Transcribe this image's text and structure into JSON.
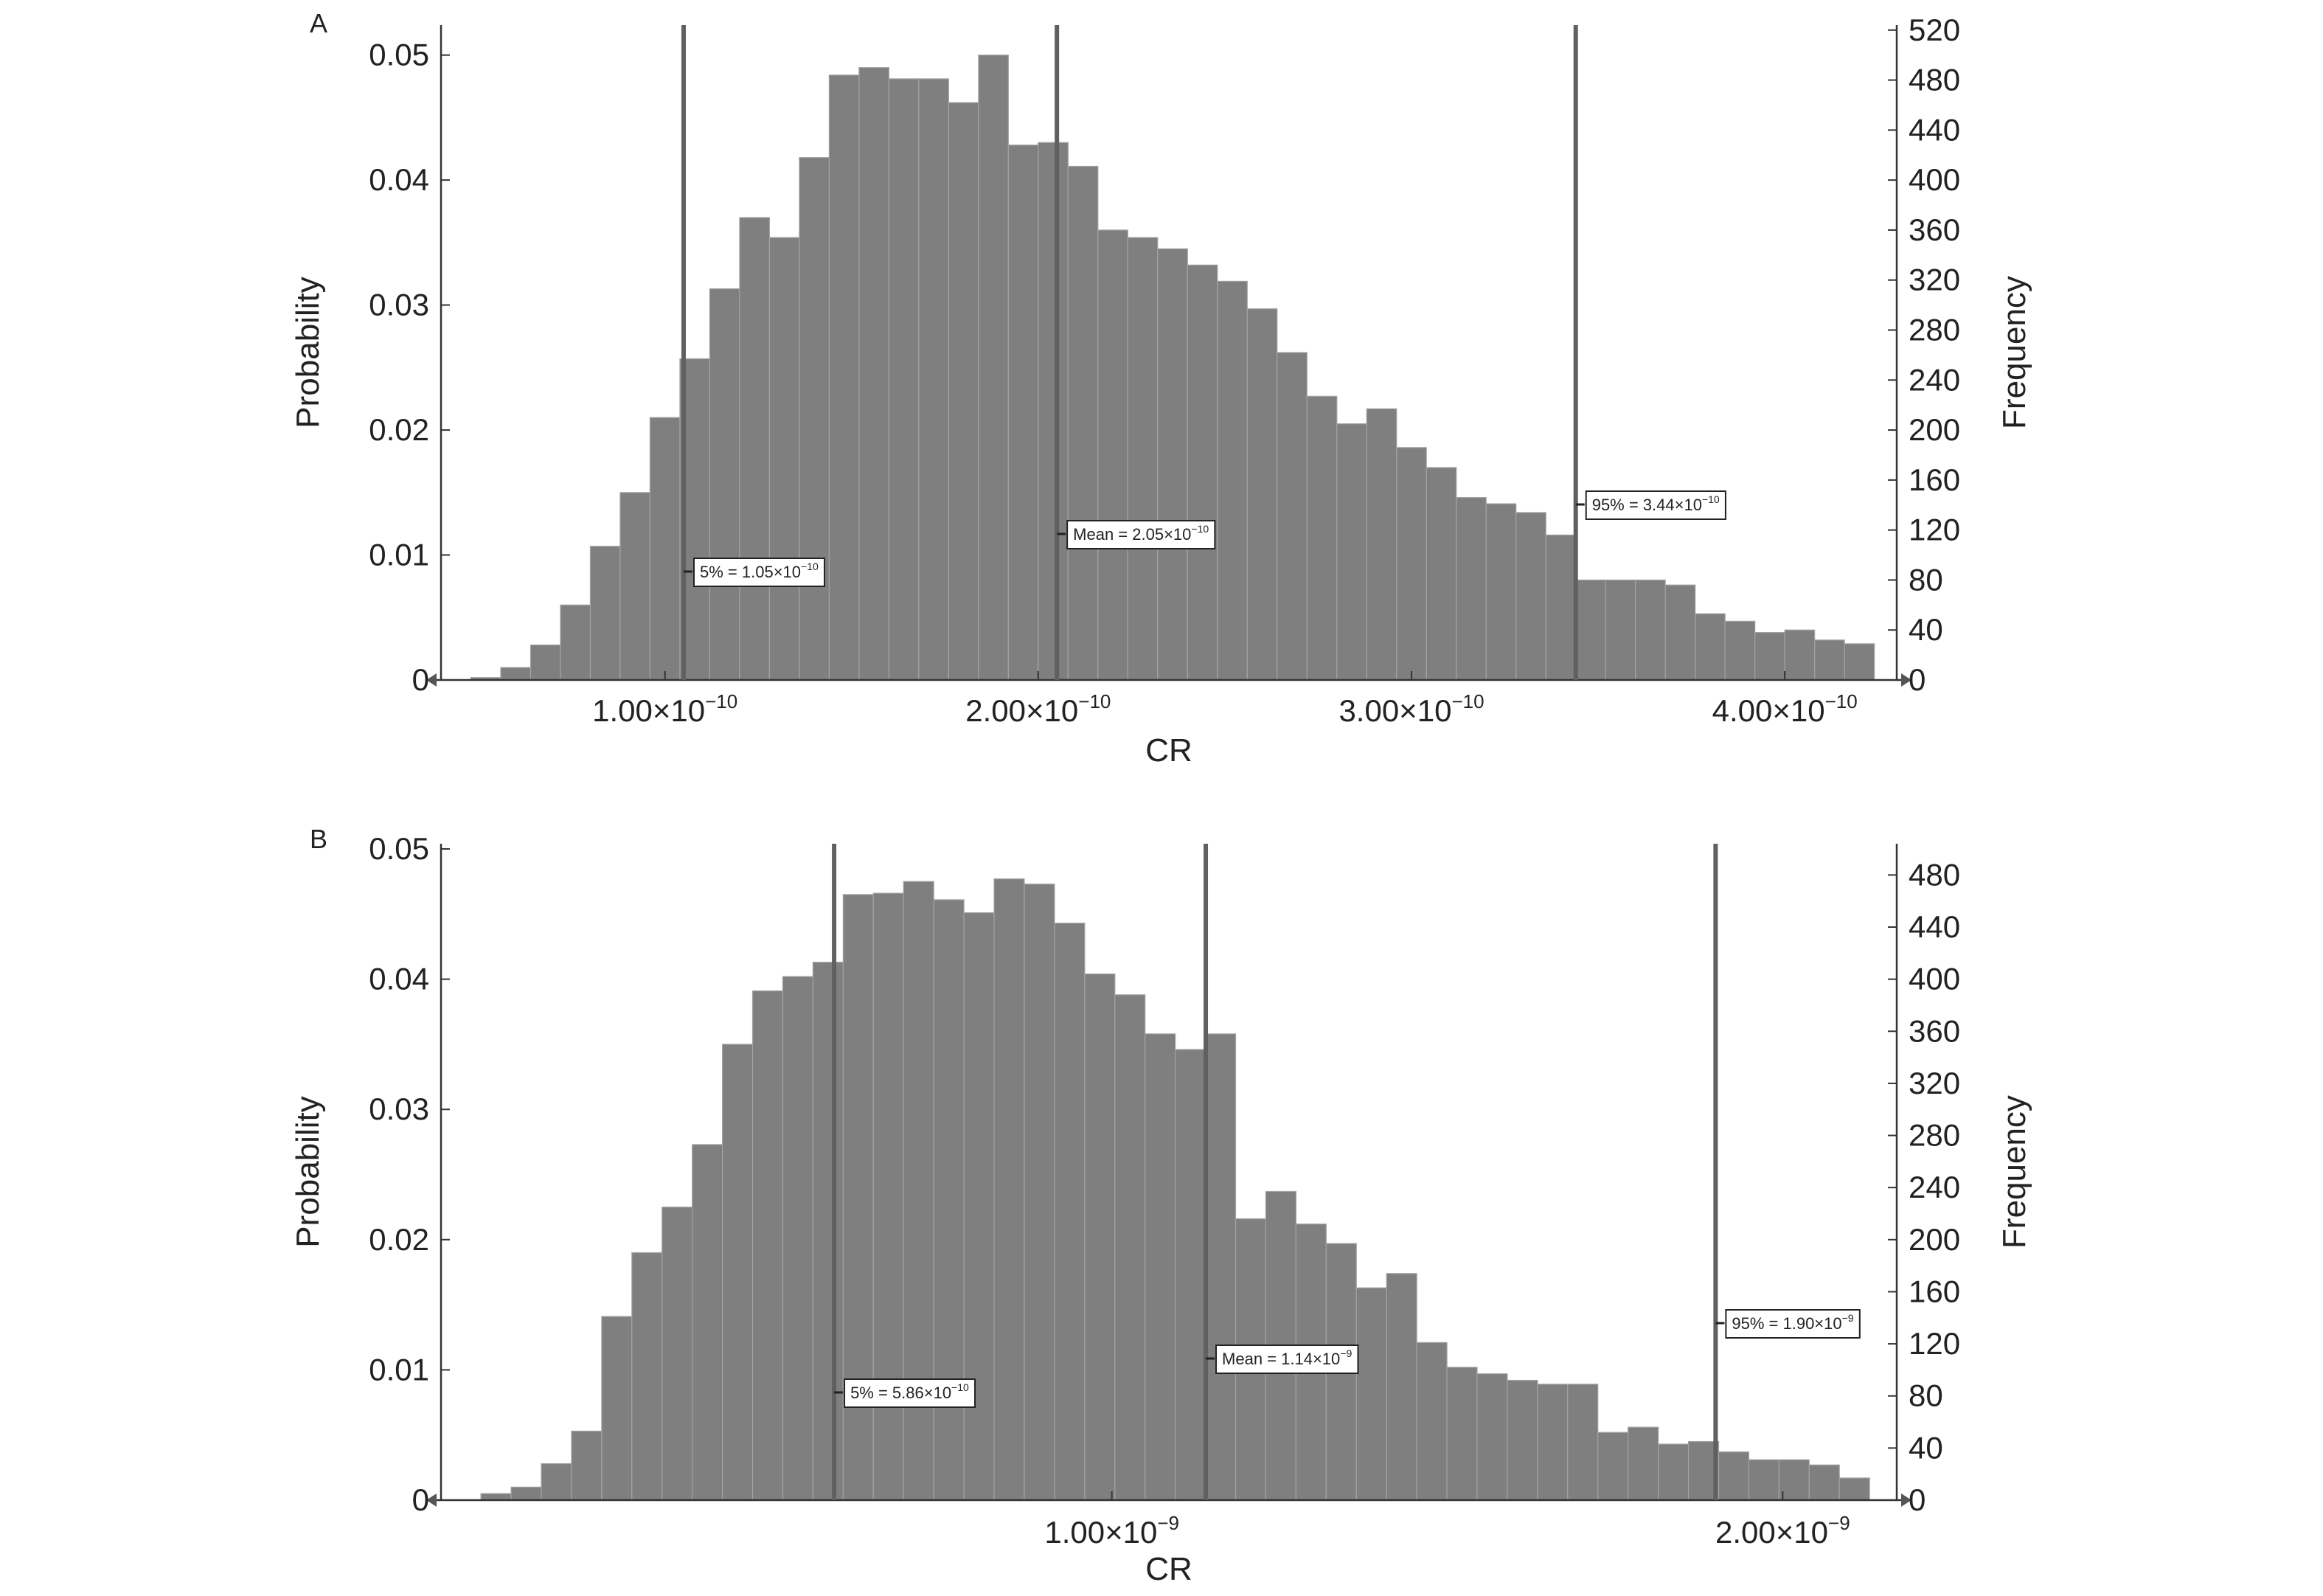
{
  "figure": {
    "background": "#ffffff",
    "bar_color": "#7f7f7f",
    "bar_edge": "#a3a3a3",
    "marker_color": "#606060"
  },
  "chart_data": [
    {
      "type": "bar",
      "panel_label": "A",
      "xlabel": "CR",
      "ylabel": "Probability",
      "ylabel2": "Frequency",
      "x_scale_note": "bin centers in units of 1e-10",
      "xlim": [
        0.4,
        4.3
      ],
      "ylim": [
        0,
        0.0524
      ],
      "y2lim": [
        0,
        524
      ],
      "yticks": [
        "0",
        "0.01",
        "0.02",
        "0.03",
        "0.04",
        "0.05"
      ],
      "y2ticks": [
        "0",
        "40",
        "80",
        "120",
        "160",
        "200",
        "240",
        "280",
        "320",
        "360",
        "400",
        "440",
        "480",
        "520"
      ],
      "xticks": [
        {
          "value": 1.0,
          "base": "1.00×10",
          "exp": "−10"
        },
        {
          "value": 2.0,
          "base": "2.00×10",
          "exp": "−10"
        },
        {
          "value": 3.0,
          "base": "3.00×10",
          "exp": "−10"
        },
        {
          "value": 4.0,
          "base": "4.00×10",
          "exp": "−10"
        }
      ],
      "bin_width": 0.08,
      "bins": [
        0.52,
        0.6,
        0.68,
        0.76,
        0.84,
        0.92,
        1.0,
        1.08,
        1.16,
        1.24,
        1.32,
        1.4,
        1.48,
        1.56,
        1.64,
        1.72,
        1.8,
        1.88,
        1.96,
        2.04,
        2.12,
        2.2,
        2.28,
        2.36,
        2.44,
        2.52,
        2.6,
        2.68,
        2.76,
        2.84,
        2.92,
        3.0,
        3.08,
        3.16,
        3.24,
        3.32,
        3.4,
        3.48,
        3.56,
        3.64,
        3.72,
        3.8,
        3.88,
        3.96,
        4.04,
        4.12,
        4.2
      ],
      "values": [
        0.0002,
        0.001,
        0.0028,
        0.006,
        0.0107,
        0.015,
        0.021,
        0.0257,
        0.0313,
        0.037,
        0.0354,
        0.0418,
        0.0484,
        0.049,
        0.0481,
        0.0481,
        0.0462,
        0.05,
        0.0428,
        0.043,
        0.0411,
        0.036,
        0.0354,
        0.0345,
        0.0332,
        0.0319,
        0.0297,
        0.0262,
        0.0227,
        0.0205,
        0.0217,
        0.0186,
        0.017,
        0.0146,
        0.0141,
        0.0134,
        0.0116,
        0.008,
        0.008,
        0.008,
        0.0076,
        0.0053,
        0.0047,
        0.0038,
        0.004,
        0.0032,
        0.0029
      ],
      "markers": [
        {
          "value": 1.05,
          "label": "5% = 1.05×10",
          "exp": "−10"
        },
        {
          "value": 2.05,
          "label": "Mean = 2.05×10",
          "exp": "−10"
        },
        {
          "value": 3.44,
          "label": "95% = 3.44×10",
          "exp": "−10"
        }
      ]
    },
    {
      "type": "bar",
      "panel_label": "B",
      "xlabel": "CR",
      "ylabel": "Probability",
      "ylabel2": "Frequency",
      "x_scale_note": "bin centers in units of 1e-9",
      "xlim": [
        0.0,
        2.17
      ],
      "ylim": [
        0,
        0.0504
      ],
      "y2lim": [
        0,
        504
      ],
      "yticks": [
        "0",
        "0.01",
        "0.02",
        "0.03",
        "0.04",
        "0.05"
      ],
      "y2ticks": [
        "0",
        "40",
        "80",
        "120",
        "160",
        "200",
        "240",
        "280",
        "320",
        "360",
        "400",
        "440",
        "480"
      ],
      "xticks": [
        {
          "value": 1.0,
          "base": "1.00×10",
          "exp": "−9"
        },
        {
          "value": 2.0,
          "base": "2.00×10",
          "exp": "−9"
        }
      ],
      "bin_width": 0.045,
      "bins": [
        0.082,
        0.127,
        0.172,
        0.217,
        0.262,
        0.307,
        0.352,
        0.397,
        0.442,
        0.487,
        0.532,
        0.577,
        0.622,
        0.667,
        0.712,
        0.757,
        0.802,
        0.847,
        0.892,
        0.937,
        0.982,
        1.027,
        1.072,
        1.117,
        1.162,
        1.207,
        1.252,
        1.297,
        1.342,
        1.387,
        1.432,
        1.477,
        1.522,
        1.567,
        1.612,
        1.657,
        1.702,
        1.747,
        1.792,
        1.837,
        1.882,
        1.927,
        1.972,
        2.017,
        2.062,
        2.107
      ],
      "values": [
        0.0005,
        0.001,
        0.0028,
        0.0053,
        0.0141,
        0.019,
        0.0225,
        0.0273,
        0.035,
        0.0391,
        0.0402,
        0.0413,
        0.0465,
        0.0466,
        0.0475,
        0.0461,
        0.0451,
        0.0477,
        0.0473,
        0.0443,
        0.0404,
        0.0388,
        0.0358,
        0.0346,
        0.0358,
        0.0216,
        0.0237,
        0.0212,
        0.0197,
        0.0163,
        0.0174,
        0.0121,
        0.0102,
        0.0097,
        0.0092,
        0.0089,
        0.0089,
        0.0052,
        0.0056,
        0.0043,
        0.0045,
        0.0037,
        0.0031,
        0.0031,
        0.0027,
        0.0017
      ],
      "markers": [
        {
          "value": 0.586,
          "label": "5% = 5.86×10",
          "exp": "−10"
        },
        {
          "value": 1.14,
          "label": "Mean = 1.14×10",
          "exp": "−9"
        },
        {
          "value": 1.9,
          "label": "95% = 1.90×10",
          "exp": "−9"
        }
      ]
    }
  ]
}
